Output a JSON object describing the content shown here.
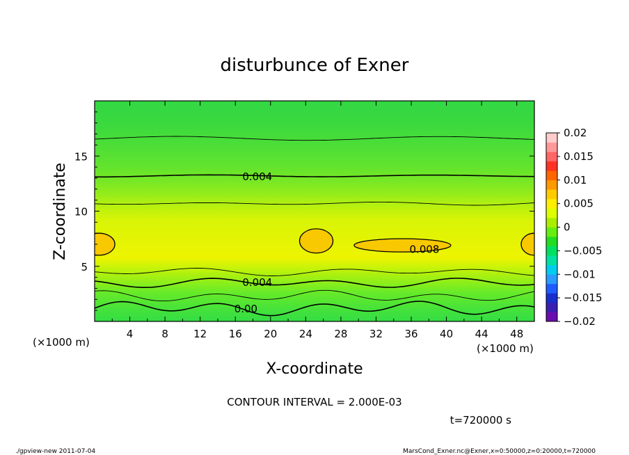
{
  "chart_data": {
    "type": "contour",
    "title": "disturbunce of Exner",
    "xlabel": "X-coordinate",
    "ylabel": "Z-coordinate",
    "x_unit": "(×1000 m)",
    "y_unit": "(×1000 m)",
    "xlim": [
      0,
      50
    ],
    "ylim": [
      0,
      20
    ],
    "x_ticks": [
      4,
      8,
      12,
      16,
      20,
      24,
      28,
      32,
      36,
      40,
      44,
      48
    ],
    "y_ticks": [
      5,
      10,
      15
    ],
    "contour_interval_text": "CONTOUR INTERVAL = 2.000E-03",
    "time_text": "t=720000 s",
    "contour_labels": [
      {
        "text": "0.004",
        "x": 18.5,
        "z": 13.2
      },
      {
        "text": "0.008",
        "x": 37.5,
        "z": 6.6
      },
      {
        "text": "0.004",
        "x": 18.5,
        "z": 3.6
      },
      {
        "text": "0.00",
        "x": 17.2,
        "z": 1.2
      }
    ],
    "colorbar": {
      "ticks": [
        "0.02",
        "0.015",
        "0.01",
        "0.005",
        "0",
        "−0.005",
        "−0.01",
        "−0.015",
        "−0.02"
      ],
      "min": -0.02,
      "max": 0.02,
      "colors": [
        "#6a0dad",
        "#3b1fb0",
        "#1a2ecc",
        "#1f5cff",
        "#2a9cff",
        "#00ccee",
        "#00e0a0",
        "#00e060",
        "#22dd22",
        "#66ee11",
        "#aaee00",
        "#ddff00",
        "#ffee00",
        "#ffcc00",
        "#ff9900",
        "#ff6600",
        "#ff3322",
        "#ff6666",
        "#ff9999",
        "#ffcccc"
      ]
    }
  },
  "footer": {
    "left": "./gpview-new 2011-07-04",
    "right": "MarsCond_Exner.nc@Exner,x=0:50000,z=0:20000,t=720000"
  }
}
